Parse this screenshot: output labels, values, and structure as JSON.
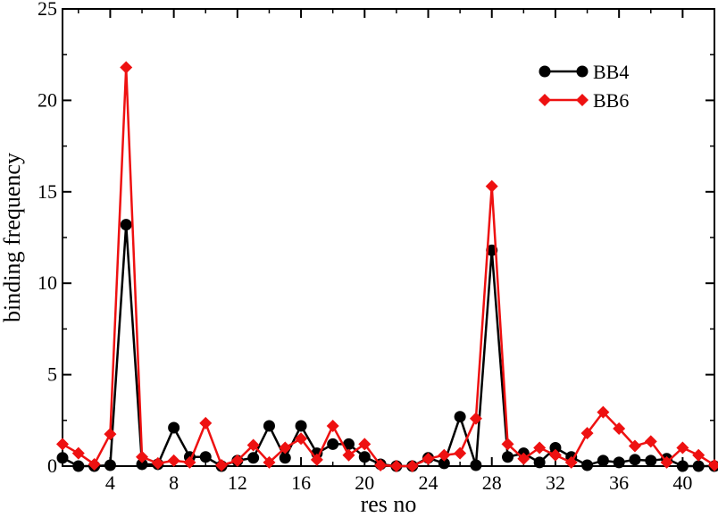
{
  "chart_data": {
    "type": "line",
    "xlabel": "res no",
    "ylabel": "binding frequency",
    "xlim": [
      1,
      42
    ],
    "ylim": [
      0,
      25
    ],
    "x_ticks": [
      4,
      8,
      12,
      16,
      20,
      24,
      28,
      32,
      36,
      40
    ],
    "y_ticks": [
      0,
      5,
      10,
      15,
      20,
      25
    ],
    "grid": false,
    "legend_position": "top-right",
    "series": [
      {
        "name": "BB4",
        "color": "#000000",
        "marker": "circle",
        "x": [
          1,
          2,
          3,
          4,
          5,
          6,
          7,
          8,
          9,
          10,
          11,
          12,
          13,
          14,
          15,
          16,
          17,
          18,
          19,
          20,
          21,
          22,
          23,
          24,
          25,
          26,
          27,
          28,
          29,
          30,
          31,
          32,
          33,
          34,
          35,
          36,
          37,
          38,
          39,
          40,
          41,
          42
        ],
        "values": [
          0.45,
          0.0,
          0.0,
          0.05,
          13.2,
          0.1,
          0.1,
          2.1,
          0.5,
          0.5,
          0.0,
          0.3,
          0.45,
          2.2,
          0.45,
          2.2,
          0.7,
          1.2,
          1.2,
          0.5,
          0.1,
          0.0,
          0.0,
          0.45,
          0.15,
          2.7,
          0.05,
          11.8,
          0.5,
          0.7,
          0.2,
          1.0,
          0.5,
          0.05,
          0.3,
          0.2,
          0.35,
          0.3,
          0.4,
          0.0,
          0.0,
          0.0
        ]
      },
      {
        "name": "BB6",
        "color": "#ee1111",
        "marker": "diamond",
        "x": [
          1,
          2,
          3,
          4,
          5,
          6,
          7,
          8,
          9,
          10,
          11,
          12,
          13,
          14,
          15,
          16,
          17,
          18,
          19,
          20,
          21,
          22,
          23,
          24,
          25,
          26,
          27,
          28,
          29,
          30,
          31,
          32,
          33,
          34,
          35,
          36,
          37,
          38,
          39,
          40,
          41,
          42
        ],
        "values": [
          1.2,
          0.7,
          0.1,
          1.75,
          21.8,
          0.5,
          0.15,
          0.3,
          0.2,
          2.35,
          0.05,
          0.3,
          1.15,
          0.2,
          1.0,
          1.5,
          0.35,
          2.2,
          0.6,
          1.2,
          0.05,
          0.0,
          0.0,
          0.4,
          0.6,
          0.7,
          2.6,
          15.3,
          1.2,
          0.4,
          1.0,
          0.6,
          0.2,
          1.8,
          2.95,
          2.05,
          1.1,
          1.35,
          0.2,
          1.0,
          0.6,
          0.05
        ]
      }
    ]
  }
}
